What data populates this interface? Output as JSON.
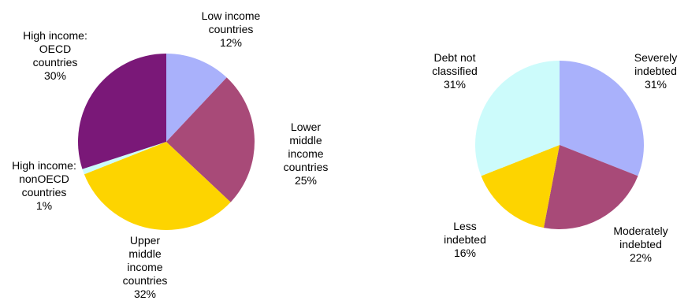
{
  "chart_data": [
    {
      "type": "pie",
      "colors": [
        "#a9b1fb",
        "#a84a78",
        "#fdd400",
        "#ccfbfb",
        "#7a1878"
      ],
      "slices": [
        {
          "lines": [
            "Low income",
            "countries"
          ],
          "value": 12,
          "pct": "12%"
        },
        {
          "lines": [
            "Lower",
            "middle",
            "income",
            "countries"
          ],
          "value": 25,
          "pct": "25%"
        },
        {
          "lines": [
            "Upper",
            "middle",
            "income",
            "countries"
          ],
          "value": 32,
          "pct": "32%"
        },
        {
          "lines": [
            "High income:",
            "nonOECD",
            "countries"
          ],
          "value": 1,
          "pct": "1%"
        },
        {
          "lines": [
            "High income:",
            "OECD",
            "countries"
          ],
          "value": 30,
          "pct": "30%"
        }
      ]
    },
    {
      "type": "pie",
      "colors": [
        "#a9b1fb",
        "#a84a78",
        "#fdd400",
        "#ccfbfb"
      ],
      "slices": [
        {
          "lines": [
            "Severely",
            "indebted"
          ],
          "value": 31,
          "pct": "31%"
        },
        {
          "lines": [
            "Moderately",
            "indebted"
          ],
          "value": 22,
          "pct": "22%"
        },
        {
          "lines": [
            "Less",
            "indebted"
          ],
          "value": 16,
          "pct": "16%"
        },
        {
          "lines": [
            "Debt not",
            "classified"
          ],
          "value": 31,
          "pct": "31%"
        }
      ]
    }
  ]
}
